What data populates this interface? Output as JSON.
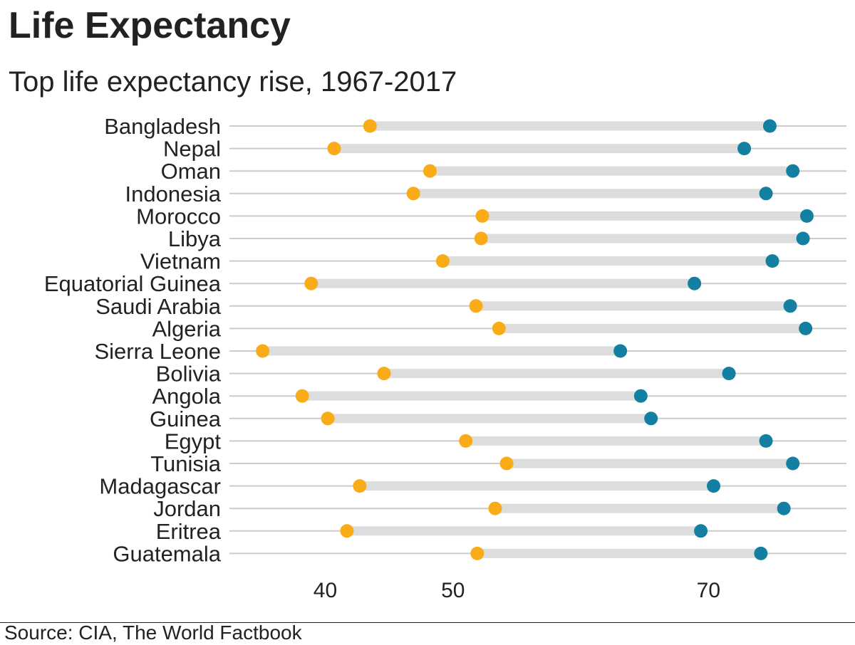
{
  "title": "Life Expectancy",
  "subtitle": "Top life expectancy rise, 1967-2017",
  "source": "Source: CIA, The World Factbook",
  "colors": {
    "start": "#FAAB18",
    "end": "#1380A1",
    "bar": "#DDDDDD",
    "grid": "#CBCBCB"
  },
  "chart_data": {
    "type": "dumbbell",
    "title": "Life Expectancy",
    "subtitle": "Top life expectancy rise, 1967-2017",
    "xlabel": "",
    "ylabel": "",
    "x_ticks": [
      40,
      50,
      70
    ],
    "xlim": [
      32.5,
      80.8
    ],
    "grid": "horizontal",
    "categories": [
      "Bangladesh",
      "Nepal",
      "Oman",
      "Indonesia",
      "Morocco",
      "Libya",
      "Vietnam",
      "Equatorial Guinea",
      "Saudi Arabia",
      "Algeria",
      "Sierra Leone",
      "Bolivia",
      "Angola",
      "Guinea",
      "Egypt",
      "Tunisia",
      "Madagascar",
      "Jordan",
      "Eritrea",
      "Guatemala"
    ],
    "series": [
      {
        "values": [
          43.5,
          40.7,
          48.2,
          46.9,
          52.3,
          52.2,
          49.2,
          38.9,
          51.8,
          53.6,
          35.1,
          44.6,
          38.2,
          40.2,
          51.0,
          54.2,
          42.7,
          53.3,
          41.7,
          51.9
        ]
      },
      {
        "values": [
          74.8,
          72.8,
          76.6,
          74.5,
          77.7,
          77.4,
          75.0,
          68.9,
          76.4,
          77.6,
          63.1,
          71.6,
          64.7,
          65.5,
          74.5,
          76.6,
          70.4,
          75.9,
          69.4,
          74.1
        ]
      }
    ]
  }
}
